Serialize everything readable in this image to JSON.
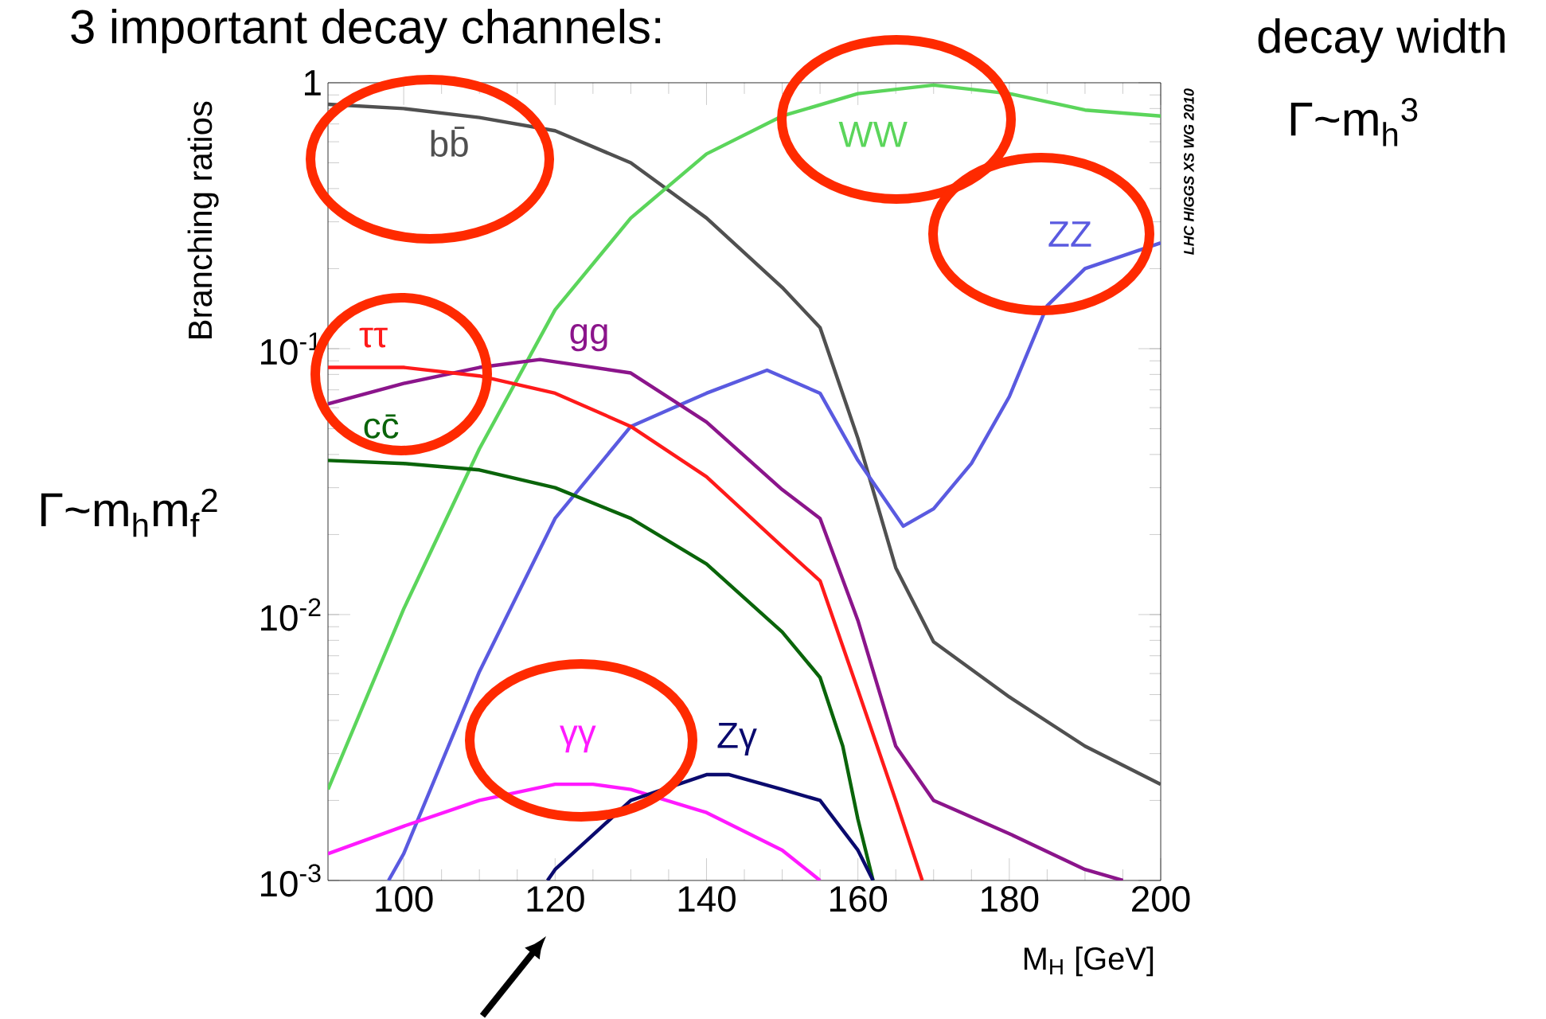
{
  "chart_data": {
    "type": "line",
    "title": "3 important decay channels:",
    "xlabel": "M$_{H}$ [GeV]",
    "ylabel": "Branching ratios",
    "xlim": [
      90,
      200
    ],
    "ylim": [
      0.001,
      1
    ],
    "log": "y",
    "xticks": [
      100,
      120,
      140,
      160,
      180,
      200
    ],
    "yticks": [
      {
        "value": 0.001,
        "label": "10$^{-3}$"
      },
      {
        "value": 0.01,
        "label": "10$^{-2}$"
      },
      {
        "value": 0.1,
        "label": "10$^{-1}$"
      },
      1
    ],
    "annotations": [
      "decay width",
      "Γ~m$_{h}$$^{3}$",
      "Γ~m$_{h}$m$_{f}$$^{2}$",
      "LHC HIGGS XS WG 2010"
    ],
    "series": [
      {
        "name": "bb̄",
        "color": "#505050",
        "x": [
          90,
          100,
          110,
          120,
          130,
          140,
          150,
          155,
          160,
          165,
          170,
          180,
          190,
          200
        ],
        "values": [
          0.83,
          0.8,
          0.74,
          0.66,
          0.5,
          0.31,
          0.17,
          0.12,
          0.046,
          0.015,
          0.0079,
          0.0049,
          0.0032,
          0.0023
        ]
      },
      {
        "name": "WW",
        "color": "#5bd55b",
        "x": [
          90,
          100,
          110,
          120,
          130,
          140,
          150,
          160,
          170,
          180,
          190,
          200
        ],
        "values": [
          0.0022,
          0.0105,
          0.042,
          0.14,
          0.31,
          0.54,
          0.75,
          0.91,
          0.98,
          0.91,
          0.79,
          0.75
        ]
      },
      {
        "name": "ZZ",
        "color": "#5a5ae0",
        "x": [
          98,
          100,
          110,
          120,
          130,
          140,
          148,
          155,
          160,
          166,
          170,
          175,
          180,
          185,
          190,
          200
        ],
        "values": [
          0.001,
          0.00126,
          0.0061,
          0.023,
          0.051,
          0.068,
          0.083,
          0.068,
          0.038,
          0.0215,
          0.025,
          0.037,
          0.066,
          0.145,
          0.2,
          0.25
        ]
      },
      {
        "name": "gg",
        "color": "#8b158b",
        "x": [
          90,
          100,
          110,
          118,
          130,
          140,
          150,
          155,
          160,
          165,
          170,
          180,
          190,
          195
        ],
        "values": [
          0.062,
          0.074,
          0.085,
          0.091,
          0.081,
          0.053,
          0.0295,
          0.023,
          0.0095,
          0.0032,
          0.002,
          0.0015,
          0.0011,
          0.001
        ]
      },
      {
        "name": "ττ",
        "color": "#ff1a1a",
        "x": [
          90,
          100,
          110,
          120,
          130,
          140,
          150,
          155,
          160,
          165,
          168.5
        ],
        "values": [
          0.085,
          0.085,
          0.079,
          0.068,
          0.051,
          0.033,
          0.018,
          0.0134,
          0.0052,
          0.002,
          0.001
        ]
      },
      {
        "name": "cc̄",
        "color": "#0a640a",
        "x": [
          90,
          100,
          110,
          120,
          130,
          140,
          150,
          155,
          158,
          160,
          162
        ],
        "values": [
          0.038,
          0.037,
          0.035,
          0.03,
          0.023,
          0.0155,
          0.0086,
          0.0058,
          0.0032,
          0.0017,
          0.001
        ]
      },
      {
        "name": "γγ",
        "color": "#ff1aff",
        "x": [
          90,
          100,
          110,
          120,
          125,
          130,
          140,
          150,
          155
        ],
        "values": [
          0.00126,
          0.0016,
          0.002,
          0.0023,
          0.0023,
          0.0022,
          0.0018,
          0.0013,
          0.001
        ]
      },
      {
        "name": "Zγ",
        "color": "#0a0a6e",
        "x": [
          119,
          120,
          130,
          140,
          143,
          150,
          155,
          160,
          162
        ],
        "values": [
          0.001,
          0.0011,
          0.002,
          0.0025,
          0.0025,
          0.0022,
          0.002,
          0.0013,
          0.001
        ]
      }
    ]
  }
}
